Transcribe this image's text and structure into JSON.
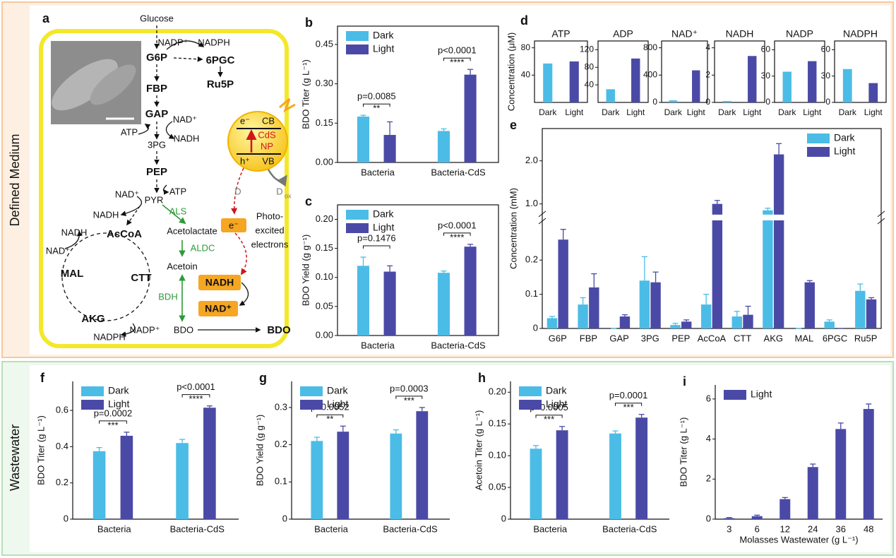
{
  "sections": [
    "Defined Medium",
    "Wastewater"
  ],
  "pathway": {
    "panel": "a",
    "labels": [
      "Glucose",
      "NADP⁺",
      "NADPH",
      "G6P",
      "6PGC",
      "Ru5P",
      "FBP",
      "GAP",
      "NAD⁺",
      "ATP",
      "NADH",
      "3PG",
      "PEP",
      "NAD⁺",
      "ATP",
      "PYR",
      "NADH",
      "ALS",
      "Acetolactate",
      "NADH",
      "AcCoA",
      "NAD⁺",
      "ALDC",
      "Acetoin",
      "MAL",
      "CTT",
      "BDH",
      "NADH",
      "NAD⁺",
      "AKG",
      "NADP⁺",
      "NADPH",
      "BDO",
      "BDO",
      "e⁻",
      "Photo-",
      "excited",
      "electrons",
      "CB",
      "CdS",
      "NP",
      "VB",
      "e⁻",
      "h⁺",
      "D",
      "D",
      "ox"
    ]
  },
  "chart_data": [
    {
      "type": "bar",
      "panel": "b",
      "ylabel": "BDO Titer (g L⁻¹)",
      "categories": [
        "Bacteria",
        "Bacteria-CdS"
      ],
      "series": [
        {
          "name": "Dark",
          "color": "#4bbce6",
          "values": [
            0.175,
            0.12
          ],
          "errors": [
            0.005,
            0.008
          ]
        },
        {
          "name": "Light",
          "color": "#4a4aa6",
          "values": [
            0.105,
            0.335
          ],
          "errors": [
            0.05,
            0.02
          ]
        }
      ],
      "p_values": [
        "p=0.0085",
        "p<0.0001"
      ],
      "significance": [
        "**",
        "****"
      ],
      "ylim": [
        0,
        0.52
      ],
      "yticks": [
        {
          "value": 0,
          "label": "0.00"
        },
        0.15,
        {
          "value": 0.3,
          "label": "0.30"
        },
        0.45
      ],
      "legend": "upper left"
    },
    {
      "type": "bar",
      "panel": "c",
      "ylabel": "BDO Yield (g g⁻¹)",
      "categories": [
        "Bacteria",
        "Bacteria-CdS"
      ],
      "series": [
        {
          "name": "Dark",
          "color": "#4bbce6",
          "values": [
            0.12,
            0.108
          ],
          "errors": [
            0.015,
            0.003
          ]
        },
        {
          "name": "Light",
          "color": "#4a4aa6",
          "values": [
            0.11,
            0.153
          ],
          "errors": [
            0.01,
            0.004
          ]
        }
      ],
      "p_values": [
        "p=0.1476",
        "p<0.0001"
      ],
      "significance": [
        null,
        "****"
      ],
      "ylim": [
        0,
        0.225
      ],
      "yticks": [
        {
          "value": 0,
          "label": "0.00"
        },
        0.05,
        {
          "value": 0.1,
          "label": "0.10"
        },
        0.15,
        {
          "value": 0.2,
          "label": "0.20"
        }
      ],
      "legend": "upper left"
    },
    {
      "type": "bar",
      "panel": "d",
      "title": "ATP",
      "ylabel": "Concentration (μM)",
      "categories": [
        "Dark",
        "Light"
      ],
      "values": [
        57,
        60
      ],
      "colors": [
        "#4bbce6",
        "#4a4aa6"
      ],
      "ylim": [
        0,
        90
      ],
      "yticks": [
        40,
        80
      ]
    },
    {
      "type": "bar",
      "title": "ADP",
      "categories": [
        "Dark",
        "Light"
      ],
      "values": [
        30,
        100
      ],
      "colors": [
        "#4bbce6",
        "#4a4aa6"
      ],
      "ylim": [
        0,
        140
      ],
      "yticks": [
        40,
        80,
        120
      ]
    },
    {
      "type": "bar",
      "title": "NAD⁺",
      "categories": [
        "Dark",
        "Light"
      ],
      "values": [
        30,
        470
      ],
      "colors": [
        "#4bbce6",
        "#4a4aa6"
      ],
      "ylim": [
        0,
        900
      ],
      "yticks": [
        0,
        400,
        800
      ]
    },
    {
      "type": "bar",
      "title": "NADH",
      "categories": [
        "Dark",
        "Light"
      ],
      "values": [
        0.1,
        3.4
      ],
      "colors": [
        "#4bbce6",
        "#4a4aa6"
      ],
      "ylim": [
        0,
        4.5
      ],
      "yticks": [
        0,
        2,
        4
      ]
    },
    {
      "type": "bar",
      "title": "NADP",
      "categories": [
        "Dark",
        "Light"
      ],
      "values": [
        35,
        47
      ],
      "colors": [
        "#4bbce6",
        "#4a4aa6"
      ],
      "ylim": [
        0,
        70
      ],
      "yticks": [
        0,
        30,
        60
      ]
    },
    {
      "type": "bar",
      "title": "NADPH",
      "categories": [
        "Dark",
        "Light"
      ],
      "values": [
        38,
        22
      ],
      "colors": [
        "#4bbce6",
        "#4a4aa6"
      ],
      "ylim": [
        0,
        70
      ],
      "yticks": [
        0,
        30,
        60
      ]
    },
    {
      "type": "bar",
      "panel": "e",
      "ylabel": "Concentration (mM)",
      "categories": [
        "G6P",
        "FBP",
        "GAP",
        "3PG",
        "PEP",
        "AcCoA",
        "CTT",
        "AKG",
        "MAL",
        "6PGC",
        "Ru5P"
      ],
      "series": [
        {
          "name": "Dark",
          "color": "#4bbce6",
          "values": [
            0.03,
            0.07,
            0.0,
            0.14,
            0.01,
            0.07,
            0.035,
            0.85,
            0.0,
            0.02,
            0.11
          ],
          "errors": [
            0.005,
            0.02,
            0,
            0.07,
            0.005,
            0.03,
            0.015,
            0.05,
            0,
            0.005,
            0.02
          ]
        },
        {
          "name": "Light",
          "color": "#4a4aa6",
          "values": [
            0.26,
            0.12,
            0.035,
            0.135,
            0.02,
            1.0,
            0.04,
            2.15,
            0.135,
            0.0,
            0.085
          ],
          "errors": [
            0.03,
            0.04,
            0.005,
            0.03,
            0.005,
            0.08,
            0.025,
            0.25,
            0.005,
            0,
            0.005
          ]
        }
      ],
      "ylim": [
        0,
        2.75
      ],
      "ybreak": [
        0.31,
        0.8
      ],
      "yticks": [
        0,
        0.1,
        0.2,
        {
          "value": 1,
          "label": "1.0"
        },
        {
          "value": 2,
          "label": "2.0"
        }
      ],
      "legend": "upper right"
    },
    {
      "type": "bar",
      "panel": "f",
      "ylabel": "BDO Titer (g L⁻¹)",
      "categories": [
        "Bacteria",
        "Bacteria-CdS"
      ],
      "series": [
        {
          "name": "Dark",
          "color": "#4bbce6",
          "values": [
            0.375,
            0.42
          ],
          "errors": [
            0.02,
            0.02
          ]
        },
        {
          "name": "Light",
          "color": "#4a4aa6",
          "values": [
            0.46,
            0.615
          ],
          "errors": [
            0.02,
            0.01
          ]
        }
      ],
      "p_values": [
        "p=0.0002",
        "p<0.0001"
      ],
      "significance": [
        "***",
        "****"
      ],
      "ylim": [
        0,
        0.76
      ],
      "yticks": [
        0,
        0.2,
        0.4,
        0.6
      ],
      "legend": "upper left"
    },
    {
      "type": "bar",
      "panel": "g",
      "ylabel": "BDO Yield (g g⁻¹)",
      "categories": [
        "Bacteria",
        "Bacteria-CdS"
      ],
      "series": [
        {
          "name": "Dark",
          "color": "#4bbce6",
          "values": [
            0.21,
            0.23
          ],
          "errors": [
            0.01,
            0.01
          ]
        },
        {
          "name": "Light",
          "color": "#4a4aa6",
          "values": [
            0.235,
            0.29
          ],
          "errors": [
            0.015,
            0.01
          ]
        }
      ],
      "p_values": [
        "p=0.0052",
        "p=0.0003"
      ],
      "significance": [
        "**",
        "***"
      ],
      "ylim": [
        0,
        0.37
      ],
      "yticks": [
        0,
        0.1,
        0.2,
        0.3
      ],
      "legend": "upper left"
    },
    {
      "type": "bar",
      "panel": "h",
      "ylabel": "Acetoin Titer (g L⁻¹)",
      "categories": [
        "Bacteria",
        "Bacteria-CdS"
      ],
      "series": [
        {
          "name": "Dark",
          "color": "#4bbce6",
          "values": [
            0.111,
            0.135
          ],
          "errors": [
            0.005,
            0.004
          ]
        },
        {
          "name": "Light",
          "color": "#4a4aa6",
          "values": [
            0.14,
            0.16
          ],
          "errors": [
            0.006,
            0.005
          ]
        }
      ],
      "p_values": [
        "p=0.0005",
        "p=0.0001"
      ],
      "significance": [
        "***",
        "***"
      ],
      "ylim": [
        0,
        0.217
      ],
      "yticks": [
        0,
        0.05,
        {
          "value": 0.1,
          "label": "0.10"
        },
        0.15,
        {
          "value": 0.2,
          "label": "0.20"
        }
      ],
      "legend": "upper left"
    },
    {
      "type": "bar",
      "panel": "i",
      "ylabel": "BDO Titer (g L⁻¹)",
      "xlabel": "Molasses Wastewater (g L⁻¹)",
      "categories": [
        "3",
        "6",
        "12",
        "24",
        "36",
        "48"
      ],
      "series": [
        {
          "name": "Light",
          "color": "#4a4aa6",
          "values": [
            0.05,
            0.15,
            1.0,
            2.6,
            4.5,
            5.5
          ],
          "errors": [
            0.03,
            0.05,
            0.08,
            0.15,
            0.3,
            0.25
          ]
        }
      ],
      "ylim": [
        0,
        6.7
      ],
      "yticks": [
        0,
        2,
        4,
        6
      ],
      "legend": "upper left"
    }
  ]
}
